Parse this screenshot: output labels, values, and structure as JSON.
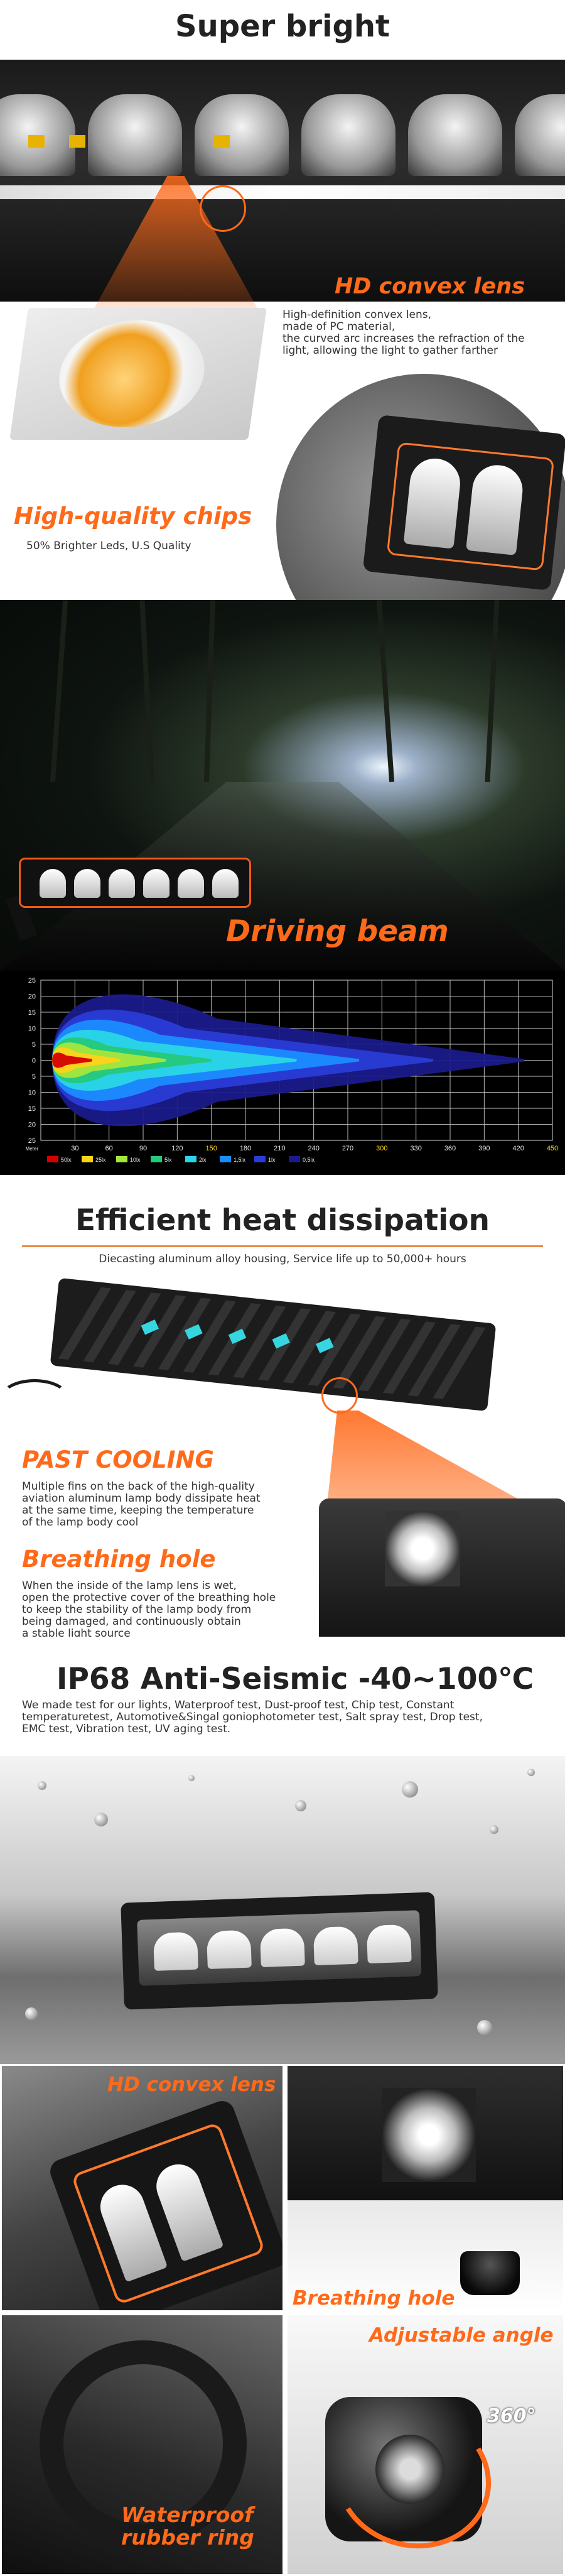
{
  "bright": {
    "title": "Super bright",
    "lens_title": "HD convex lens",
    "lens_desc": [
      "High-definition convex lens,",
      "made of PC material,",
      "the curved arc increases the refraction of the",
      "light, allowing the light to gather farther"
    ],
    "chips_title": "High-quality chips",
    "chips_desc": "50% Brighter Leds, U.S Quality"
  },
  "driving": {
    "title": "Driving beam"
  },
  "chart_data": {
    "type": "heatmap",
    "title": "",
    "xlabel": "Meter",
    "x_ticks": [
      30,
      60,
      90,
      120,
      150,
      180,
      210,
      240,
      270,
      300,
      330,
      360,
      390,
      420,
      450
    ],
    "y_ticks": [
      25,
      20,
      15,
      10,
      5,
      0,
      5,
      10,
      15,
      20,
      25
    ],
    "xlim": [
      0,
      450
    ],
    "ylim": [
      -25,
      25
    ],
    "grid": true,
    "legend": [
      {
        "label": "50lx",
        "color": "#d40000"
      },
      {
        "label": "25lx",
        "color": "#ffd21a"
      },
      {
        "label": "10lx",
        "color": "#a6e63a"
      },
      {
        "label": "5lx",
        "color": "#26c87a"
      },
      {
        "label": "2lx",
        "color": "#2ad6e6"
      },
      {
        "label": "1,5lx",
        "color": "#1a8cff"
      },
      {
        "label": "1lx",
        "color": "#2a3cd6"
      },
      {
        "label": "0,5lx",
        "color": "#1a1a8a"
      }
    ],
    "beam_extent_m": [
      {
        "lux": "0,5lx",
        "reach": 425,
        "half_width": 13
      },
      {
        "lux": "1lx",
        "reach": 345,
        "half_width": 10
      },
      {
        "lux": "1,5lx",
        "reach": 280,
        "half_width": 8
      },
      {
        "lux": "2lx",
        "reach": 225,
        "half_width": 6
      },
      {
        "lux": "5lx",
        "reach": 150,
        "half_width": 4.5
      },
      {
        "lux": "10lx",
        "reach": 110,
        "half_width": 3.5
      },
      {
        "lux": "25lx",
        "reach": 70,
        "half_width": 2.5
      },
      {
        "lux": "50lx",
        "reach": 45,
        "half_width": 1.5
      }
    ]
  },
  "heat": {
    "title": "Efficient heat dissipation",
    "subtitle": "Diecasting aluminum alloy housing, Service life up to 50,000+ hours",
    "past_title": "PAST COOLING",
    "past_desc": [
      "Multiple fins on the back of the high-quality",
      "aviation aluminum lamp body dissipate heat",
      "at the same time, keeping the temperature",
      "of the lamp body cool"
    ],
    "breath_title": "Breathing hole",
    "breath_desc": [
      "When the inside of the lamp lens is wet,",
      "open the protective cover of the breathing hole",
      "to keep the stability of the lamp body from",
      "being damaged, and continuously obtain",
      "a stable light source"
    ]
  },
  "ip68": {
    "title": "IP68  Anti-Seismic  -40~100℃",
    "desc": [
      "We made test for our lights, Waterproof test, Dust-proof test, Chip test, Constant",
      "temperaturetest, Automotive&Singal goniophotometer test, Salt spray test, Drop test,",
      "EMC test, Vibration test, UV aging test."
    ]
  },
  "features": {
    "hd_lens": "HD convex lens",
    "breathing": "Breathing hole",
    "rubber": [
      "Waterproof",
      "rubber ring"
    ],
    "adjustable": "Adjustable angle",
    "degrees": "360°"
  },
  "colors": {
    "accent": "#ff6a1a",
    "title": "#222222"
  }
}
